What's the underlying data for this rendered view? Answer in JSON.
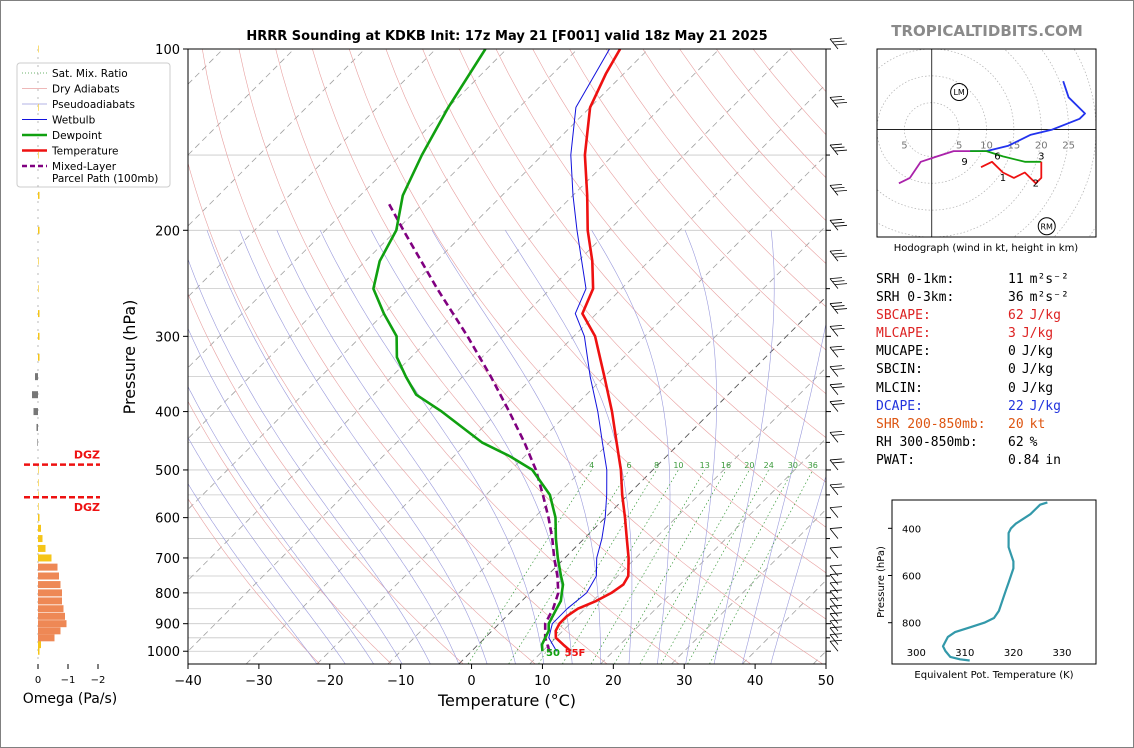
{
  "window": {
    "title": "HRRR Sounding at KDKB Init: 17z May 21 [F001] valid 18z May 21 2025",
    "brand": "TROPICALTIDBITS.COM"
  },
  "colors": {
    "temperature": "#ee1111",
    "dewpoint": "#10a010",
    "wetbulb": "#1111dd",
    "parcel": "#800080",
    "dgz": "#ee1111",
    "omega_up": "#f5c518",
    "omega_down": "#ee8855",
    "theta_e": "#3399aa",
    "hodo_0_3": "#ee1111",
    "hodo_3_6": "#10a010",
    "hodo_6_9": "#aa22aa",
    "hodo_9_plus": "#2233ee"
  },
  "skewt": {
    "ylabel": "Pressure (hPa)",
    "xlabel": "Temperature (°C)",
    "pressure_ticks": [
      "100",
      "200",
      "300",
      "400",
      "500",
      "600",
      "700",
      "800",
      "900",
      "1000"
    ],
    "temp_ticks": [
      "−40",
      "−30",
      "−20",
      "−10",
      "0",
      "10",
      "20",
      "30",
      "40",
      "50"
    ],
    "mixing_ratio_labels": [
      "4",
      "6",
      "8",
      "10",
      "13",
      "16",
      "20",
      "24",
      "30",
      "36"
    ],
    "surface_dewpoint_label": "50",
    "surface_temp_label": "55F",
    "legend": [
      {
        "label": "Sat. Mix. Ratio",
        "icon": "dotted-green-line"
      },
      {
        "label": "Dry Adiabats",
        "icon": "thin-red-line"
      },
      {
        "label": "Pseudoadiabats",
        "icon": "thin-blue-line"
      },
      {
        "label": "Wetbulb",
        "icon": "blue-line"
      },
      {
        "label": "Dewpoint",
        "icon": "green-line"
      },
      {
        "label": "Temperature",
        "icon": "red-line"
      },
      {
        "label": "Mixed-Layer\nParcel Path (100mb)",
        "icon": "purple-dashed-line"
      }
    ]
  },
  "omega": {
    "xlabel": "Omega (Pa/s)",
    "ticks": [
      "0",
      "−1",
      "−2"
    ],
    "dgz_label_top": "DGZ",
    "dgz_label_bottom": "DGZ"
  },
  "hodograph": {
    "caption": "Hodograph (wind in kt, height in km)",
    "ring_labels": [
      "5",
      "5",
      "10",
      "15",
      "20",
      "25"
    ],
    "height_labels": [
      "1",
      "2",
      "3",
      "6",
      "9"
    ],
    "lm_label": "LM",
    "rm_label": "RM"
  },
  "params": [
    {
      "label": "SRH 0-1km:",
      "value": "11",
      "unit": "m²s⁻²",
      "color": "#000000"
    },
    {
      "label": "SRH 0-3km:",
      "value": "36",
      "unit": "m²s⁻²",
      "color": "#000000"
    },
    {
      "label": "SBCAPE:",
      "value": "62",
      "unit": "J/kg",
      "color": "#dd2222"
    },
    {
      "label": "MLCAPE:",
      "value": "3",
      "unit": "J/kg",
      "color": "#dd2222"
    },
    {
      "label": "MUCAPE:",
      "value": "0",
      "unit": "J/kg",
      "color": "#000000"
    },
    {
      "label": "SBCIN:",
      "value": "0",
      "unit": "J/kg",
      "color": "#000000"
    },
    {
      "label": "MLCIN:",
      "value": "0",
      "unit": "J/kg",
      "color": "#000000"
    },
    {
      "label": "DCAPE:",
      "value": "22",
      "unit": "J/kg",
      "color": "#2233dd"
    },
    {
      "label": "SHR 200-850mb:",
      "value": "20",
      "unit": "kt",
      "color": "#dd5511"
    },
    {
      "label": "RH 300-850mb:",
      "value": "62",
      "unit": "%",
      "color": "#000000"
    },
    {
      "label": "PWAT:",
      "value": "0.84",
      "unit": "in",
      "color": "#000000"
    }
  ],
  "theta_e": {
    "ylabel": "Pressure (hPa)",
    "xlabel": "Equivalent Pot. Temperature (K)",
    "y_ticks": [
      "400",
      "600",
      "800"
    ],
    "x_ticks": [
      "300",
      "310",
      "320",
      "330"
    ]
  },
  "chart_data": [
    {
      "type": "line",
      "title": "HRRR Sounding at KDKB Init: 17z May 21 [F001] valid 18z May 21 2025",
      "xlabel": "Temperature (°C)",
      "ylabel": "Pressure (hPa)",
      "xlim": [
        -40,
        50
      ],
      "ylim": [
        1050,
        100
      ],
      "yscale": "log",
      "skew": "skew-T",
      "series": [
        {
          "name": "Temperature",
          "points": [
            [
              1000,
              14.0
            ],
            [
              975,
              12.0
            ],
            [
              950,
              10.0
            ],
            [
              925,
              9.0
            ],
            [
              900,
              8.5
            ],
            [
              875,
              8.5
            ],
            [
              850,
              9.0
            ],
            [
              825,
              10.5
            ],
            [
              800,
              11.5
            ],
            [
              775,
              12.0
            ],
            [
              750,
              11.5
            ],
            [
              700,
              9.0
            ],
            [
              650,
              6.0
            ],
            [
              600,
              2.8
            ],
            [
              550,
              -0.8
            ],
            [
              500,
              -4.5
            ],
            [
              450,
              -9.0
            ],
            [
              400,
              -14.0
            ],
            [
              350,
              -20.0
            ],
            [
              300,
              -27.0
            ],
            [
              275,
              -32.0
            ],
            [
              250,
              -34.0
            ],
            [
              225,
              -38.0
            ],
            [
              200,
              -43.0
            ],
            [
              175,
              -48.0
            ],
            [
              150,
              -54.0
            ],
            [
              125,
              -60.0
            ],
            [
              110,
              -62.5
            ],
            [
              100,
              -64.0
            ]
          ]
        },
        {
          "name": "Dewpoint",
          "points": [
            [
              1000,
              10.0
            ],
            [
              975,
              9.0
            ],
            [
              950,
              8.5
            ],
            [
              925,
              8.0
            ],
            [
              900,
              7.0
            ],
            [
              875,
              6.5
            ],
            [
              850,
              6.0
            ],
            [
              825,
              5.5
            ],
            [
              800,
              4.5
            ],
            [
              775,
              3.5
            ],
            [
              750,
              2.0
            ],
            [
              700,
              -1.0
            ],
            [
              650,
              -4.0
            ],
            [
              600,
              -7.0
            ],
            [
              550,
              -11.0
            ],
            [
              500,
              -17.0
            ],
            [
              475,
              -22.0
            ],
            [
              450,
              -28.0
            ],
            [
              400,
              -38.0
            ],
            [
              375,
              -44.0
            ],
            [
              350,
              -48.0
            ],
            [
              325,
              -52.0
            ],
            [
              300,
              -55.0
            ],
            [
              275,
              -60.0
            ],
            [
              250,
              -65.0
            ],
            [
              225,
              -68.0
            ],
            [
              200,
              -70.0
            ],
            [
              175,
              -74.0
            ],
            [
              150,
              -77.0
            ],
            [
              125,
              -80.0
            ],
            [
              100,
              -83.0
            ]
          ]
        },
        {
          "name": "Wetbulb",
          "points": [
            [
              1000,
              12.0
            ],
            [
              950,
              9.0
            ],
            [
              900,
              7.5
            ],
            [
              850,
              7.5
            ],
            [
              800,
              8.0
            ],
            [
              750,
              7.0
            ],
            [
              700,
              4.5
            ],
            [
              650,
              2.5
            ],
            [
              600,
              0.0
            ],
            [
              550,
              -3.0
            ],
            [
              500,
              -6.5
            ],
            [
              450,
              -11.0
            ],
            [
              400,
              -16.0
            ],
            [
              350,
              -22.0
            ],
            [
              300,
              -28.5
            ],
            [
              275,
              -33.0
            ],
            [
              250,
              -35.0
            ],
            [
              225,
              -39.5
            ],
            [
              200,
              -44.5
            ],
            [
              175,
              -50.0
            ],
            [
              150,
              -56.0
            ],
            [
              125,
              -62.0
            ],
            [
              110,
              -64.0
            ],
            [
              100,
              -65.5
            ]
          ]
        },
        {
          "name": "Mixed-Layer\nParcel Path (100mb)",
          "points": [
            [
              1000,
              11.0
            ],
            [
              950,
              8.5
            ],
            [
              900,
              6.5
            ],
            [
              850,
              5.5
            ],
            [
              800,
              4.0
            ],
            [
              750,
              1.5
            ],
            [
              700,
              -1.5
            ],
            [
              650,
              -4.5
            ],
            [
              600,
              -8.0
            ],
            [
              550,
              -12.0
            ],
            [
              500,
              -16.5
            ],
            [
              450,
              -22.0
            ],
            [
              400,
              -28.5
            ],
            [
              350,
              -36.0
            ],
            [
              300,
              -45.0
            ],
            [
              250,
              -56.0
            ],
            [
              200,
              -69.0
            ],
            [
              180,
              -75.0
            ]
          ]
        }
      ]
    },
    {
      "type": "bar",
      "xlabel": "Omega (Pa/s)",
      "ylabel": "",
      "orientation": "horizontal",
      "xlim": [
        0.0,
        -2.0
      ],
      "pressure": [
        1000,
        975,
        950,
        925,
        900,
        875,
        850,
        825,
        800,
        775,
        750,
        725,
        700,
        675,
        650,
        625,
        600,
        575,
        550,
        525,
        500,
        475,
        450,
        425,
        400,
        375,
        350,
        325,
        300,
        275,
        250,
        225,
        200,
        175,
        150,
        125,
        100
      ],
      "values": [
        -0.05,
        -0.1,
        -0.55,
        -0.75,
        -0.95,
        -0.9,
        -0.85,
        -0.8,
        -0.8,
        -0.75,
        -0.7,
        -0.65,
        -0.45,
        -0.25,
        -0.15,
        -0.1,
        -0.05,
        -0.02,
        -0.02,
        -0.02,
        -0.02,
        -0.01,
        0.02,
        0.05,
        0.15,
        0.2,
        0.1,
        -0.05,
        -0.05,
        -0.05,
        -0.02,
        -0.02,
        -0.05,
        -0.05,
        -0.02,
        -0.02,
        -0.02
      ],
      "dgz_pressure": [
        490,
        555
      ]
    },
    {
      "type": "line",
      "caption": "Hodograph (wind in kt, height in km)",
      "xlim": [
        -10,
        30
      ],
      "ylim": [
        -20,
        15
      ],
      "series": [
        {
          "name": "0-3 km",
          "points": [
            [
              9,
              -7
            ],
            [
              11,
              -6
            ],
            [
              13,
              -8
            ],
            [
              15,
              -9
            ],
            [
              17,
              -8
            ],
            [
              19,
              -10
            ],
            [
              20,
              -9
            ],
            [
              20,
              -6
            ]
          ]
        },
        {
          "name": "3-6 km",
          "points": [
            [
              20,
              -6
            ],
            [
              17,
              -6
            ],
            [
              13,
              -5
            ],
            [
              10,
              -4
            ],
            [
              7,
              -4
            ]
          ]
        },
        {
          "name": "6-9 km",
          "points": [
            [
              7,
              -4
            ],
            [
              4,
              -4
            ],
            [
              1,
              -5
            ],
            [
              -2,
              -6
            ],
            [
              -4,
              -9
            ],
            [
              -6,
              -10
            ]
          ]
        },
        {
          "name": "9+ km",
          "points": [
            [
              7,
              -4
            ],
            [
              10,
              -4
            ],
            [
              14,
              -3
            ],
            [
              18,
              -1
            ],
            [
              22,
              0
            ],
            [
              27,
              2
            ],
            [
              28,
              3
            ],
            [
              25,
              6
            ],
            [
              24,
              9
            ]
          ]
        }
      ],
      "storm_motion": {
        "LM": [
          5,
          7
        ],
        "RM": [
          21,
          -18
        ]
      }
    },
    {
      "type": "line",
      "xlabel": "Equivalent Pot. Temperature (K)",
      "ylabel": "Pressure (hPa)",
      "xlim": [
        295,
        337
      ],
      "ylim": [
        975,
        280
      ],
      "series": [
        {
          "name": "Equivalent Pot. Temperature",
          "points": [
            [
              960,
              311
            ],
            [
              955,
              309
            ],
            [
              945,
              307
            ],
            [
              920,
              306
            ],
            [
              900,
              305.5
            ],
            [
              880,
              306
            ],
            [
              860,
              306.5
            ],
            [
              840,
              308
            ],
            [
              820,
              311
            ],
            [
              800,
              314
            ],
            [
              780,
              316
            ],
            [
              750,
              317
            ],
            [
              720,
              317.5
            ],
            [
              690,
              318
            ],
            [
              660,
              318.5
            ],
            [
              630,
              319
            ],
            [
              600,
              319.5
            ],
            [
              570,
              320
            ],
            [
              540,
              320
            ],
            [
              510,
              319.5
            ],
            [
              480,
              319
            ],
            [
              450,
              319
            ],
            [
              420,
              319
            ],
            [
              400,
              319.5
            ],
            [
              380,
              320.5
            ],
            [
              360,
              322
            ],
            [
              340,
              323.5
            ],
            [
              320,
              324.5
            ],
            [
              300,
              325.5
            ],
            [
              290,
              327
            ]
          ]
        }
      ]
    }
  ]
}
